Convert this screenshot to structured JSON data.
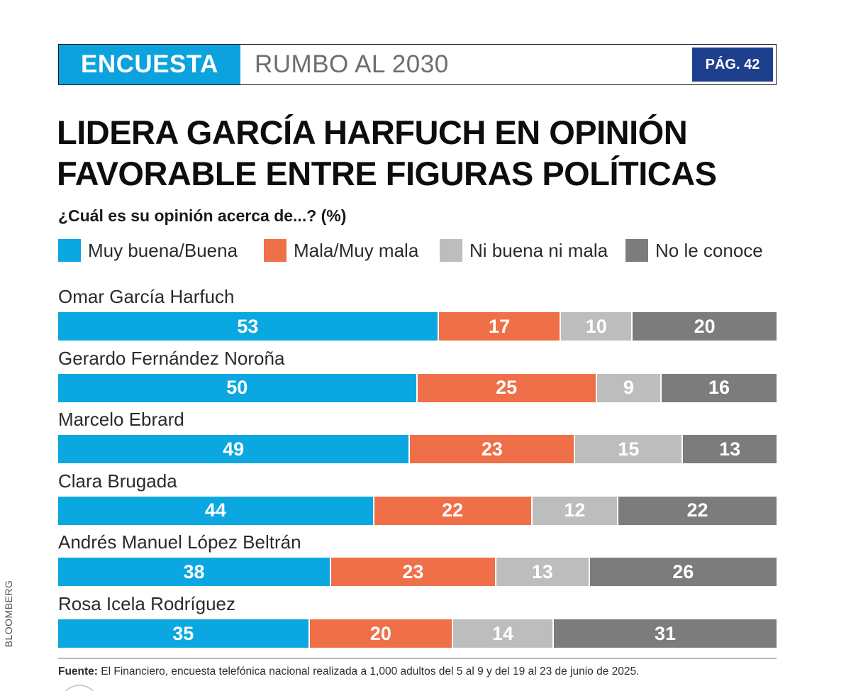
{
  "header": {
    "tag": "ENCUESTA",
    "section": "RUMBO AL 2030",
    "page": "PÁG. 42"
  },
  "headline": {
    "line1": "LIDERA GARCÍA HARFUCH EN OPINIÓN",
    "line2": "FAVORABLE ENTRE FIGURAS POLÍTICAS"
  },
  "question": "¿Cuál es su opinión acerca de...? (%)",
  "colors": {
    "good": "#0ba7e0",
    "bad": "#ef6f48",
    "neutral": "#bdbdbd",
    "unknown": "#7c7c7c",
    "header_tag": "#0ba2dd",
    "header_page": "#1e3f8c"
  },
  "chart_data": {
    "type": "bar",
    "orientation": "horizontal",
    "stacked": true,
    "title": "¿Cuál es su opinión acerca de...? (%)",
    "xlim": [
      0,
      100
    ],
    "legend_position": "top",
    "categories": [
      "Omar García Harfuch",
      "Gerardo Fernández Noroña",
      "Marcelo Ebrard",
      "Clara Brugada",
      "Andrés Manuel López Beltrán",
      "Rosa Icela Rodríguez"
    ],
    "series": [
      {
        "name": "Muy buena/Buena",
        "key": "good",
        "values": [
          53,
          50,
          49,
          44,
          38,
          35
        ]
      },
      {
        "name": "Mala/Muy mala",
        "key": "bad",
        "values": [
          17,
          25,
          23,
          22,
          23,
          20
        ]
      },
      {
        "name": "Ni buena ni mala",
        "key": "neutral",
        "values": [
          10,
          9,
          15,
          12,
          13,
          14
        ]
      },
      {
        "name": "No le conoce",
        "key": "unknown",
        "values": [
          20,
          16,
          13,
          22,
          26,
          31
        ]
      }
    ]
  },
  "source": {
    "label": "Fuente:",
    "text": " El Financiero, encuesta telefónica nacional realizada a 1,000 adultos del 5 al 9 y del 19 al 23 de junio de 2025."
  },
  "photo_credit": "BLOOMBERG"
}
